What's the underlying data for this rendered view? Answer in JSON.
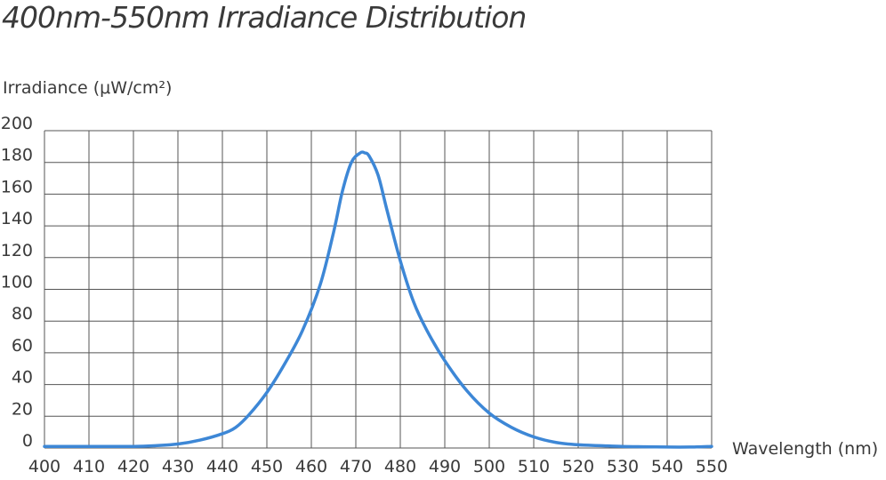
{
  "chart_data": {
    "type": "line",
    "title": "400nm-550nm Irradiance Distribution",
    "ylabel": "Irradiance (μW/cm²)",
    "xlabel": "Wavelength (nm)",
    "xlim": [
      400,
      550
    ],
    "ylim": [
      0,
      200
    ],
    "x_ticks": [
      400,
      410,
      420,
      430,
      440,
      450,
      460,
      470,
      480,
      490,
      500,
      510,
      520,
      530,
      540,
      550
    ],
    "y_ticks": [
      0,
      20,
      40,
      60,
      80,
      100,
      120,
      140,
      160,
      180,
      200
    ],
    "grid": true,
    "legend": "none",
    "line_color": "#3d87d6",
    "grid_color": "#555555",
    "series": [
      {
        "x": [
          400,
          410,
          420,
          425,
          430,
          435,
          440,
          443,
          446,
          450,
          454,
          458,
          462,
          465,
          467,
          469,
          471,
          472,
          473,
          475,
          477,
          480,
          483,
          486,
          490,
          495,
          500,
          505,
          510,
          515,
          520,
          525,
          530,
          535,
          540,
          545,
          550
        ],
        "values": [
          1,
          1,
          1,
          1.5,
          2.5,
          5,
          9,
          13,
          21,
          35,
          53,
          74,
          103,
          136,
          162,
          180,
          186,
          186,
          184,
          172,
          150,
          118,
          92,
          74,
          55,
          36,
          22,
          13,
          7,
          3.5,
          2,
          1.5,
          1,
          0.8,
          0.6,
          0.6,
          1
        ]
      }
    ]
  }
}
